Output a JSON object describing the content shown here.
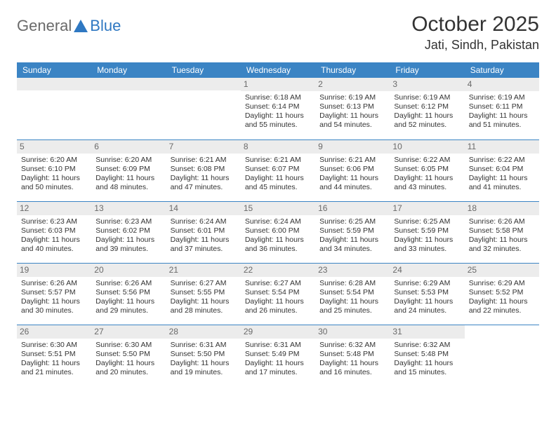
{
  "logo": {
    "general": "General",
    "blue": "Blue",
    "shape_color": "#2f78c2"
  },
  "header": {
    "month": "October 2025",
    "location": "Jati, Sindh, Pakistan"
  },
  "styling": {
    "header_bg": "#3b84c4",
    "header_text": "#ffffff",
    "rule_color": "#3b84c4",
    "daystrip_bg": "#ececec",
    "daynum_color": "#6a6a6a",
    "body_text": "#333333",
    "background": "#ffffff",
    "month_fontsize": 30,
    "location_fontsize": 18,
    "weekday_fontsize": 12,
    "cell_fontsize": 10.5
  },
  "weekdays": [
    "Sunday",
    "Monday",
    "Tuesday",
    "Wednesday",
    "Thursday",
    "Friday",
    "Saturday"
  ],
  "days": [
    {
      "n": 1,
      "sr": "6:18 AM",
      "ss": "6:14 PM",
      "dl": "11 hours and 55 minutes."
    },
    {
      "n": 2,
      "sr": "6:19 AM",
      "ss": "6:13 PM",
      "dl": "11 hours and 54 minutes."
    },
    {
      "n": 3,
      "sr": "6:19 AM",
      "ss": "6:12 PM",
      "dl": "11 hours and 52 minutes."
    },
    {
      "n": 4,
      "sr": "6:19 AM",
      "ss": "6:11 PM",
      "dl": "11 hours and 51 minutes."
    },
    {
      "n": 5,
      "sr": "6:20 AM",
      "ss": "6:10 PM",
      "dl": "11 hours and 50 minutes."
    },
    {
      "n": 6,
      "sr": "6:20 AM",
      "ss": "6:09 PM",
      "dl": "11 hours and 48 minutes."
    },
    {
      "n": 7,
      "sr": "6:21 AM",
      "ss": "6:08 PM",
      "dl": "11 hours and 47 minutes."
    },
    {
      "n": 8,
      "sr": "6:21 AM",
      "ss": "6:07 PM",
      "dl": "11 hours and 45 minutes."
    },
    {
      "n": 9,
      "sr": "6:21 AM",
      "ss": "6:06 PM",
      "dl": "11 hours and 44 minutes."
    },
    {
      "n": 10,
      "sr": "6:22 AM",
      "ss": "6:05 PM",
      "dl": "11 hours and 43 minutes."
    },
    {
      "n": 11,
      "sr": "6:22 AM",
      "ss": "6:04 PM",
      "dl": "11 hours and 41 minutes."
    },
    {
      "n": 12,
      "sr": "6:23 AM",
      "ss": "6:03 PM",
      "dl": "11 hours and 40 minutes."
    },
    {
      "n": 13,
      "sr": "6:23 AM",
      "ss": "6:02 PM",
      "dl": "11 hours and 39 minutes."
    },
    {
      "n": 14,
      "sr": "6:24 AM",
      "ss": "6:01 PM",
      "dl": "11 hours and 37 minutes."
    },
    {
      "n": 15,
      "sr": "6:24 AM",
      "ss": "6:00 PM",
      "dl": "11 hours and 36 minutes."
    },
    {
      "n": 16,
      "sr": "6:25 AM",
      "ss": "5:59 PM",
      "dl": "11 hours and 34 minutes."
    },
    {
      "n": 17,
      "sr": "6:25 AM",
      "ss": "5:59 PM",
      "dl": "11 hours and 33 minutes."
    },
    {
      "n": 18,
      "sr": "6:26 AM",
      "ss": "5:58 PM",
      "dl": "11 hours and 32 minutes."
    },
    {
      "n": 19,
      "sr": "6:26 AM",
      "ss": "5:57 PM",
      "dl": "11 hours and 30 minutes."
    },
    {
      "n": 20,
      "sr": "6:26 AM",
      "ss": "5:56 PM",
      "dl": "11 hours and 29 minutes."
    },
    {
      "n": 21,
      "sr": "6:27 AM",
      "ss": "5:55 PM",
      "dl": "11 hours and 28 minutes."
    },
    {
      "n": 22,
      "sr": "6:27 AM",
      "ss": "5:54 PM",
      "dl": "11 hours and 26 minutes."
    },
    {
      "n": 23,
      "sr": "6:28 AM",
      "ss": "5:54 PM",
      "dl": "11 hours and 25 minutes."
    },
    {
      "n": 24,
      "sr": "6:29 AM",
      "ss": "5:53 PM",
      "dl": "11 hours and 24 minutes."
    },
    {
      "n": 25,
      "sr": "6:29 AM",
      "ss": "5:52 PM",
      "dl": "11 hours and 22 minutes."
    },
    {
      "n": 26,
      "sr": "6:30 AM",
      "ss": "5:51 PM",
      "dl": "11 hours and 21 minutes."
    },
    {
      "n": 27,
      "sr": "6:30 AM",
      "ss": "5:50 PM",
      "dl": "11 hours and 20 minutes."
    },
    {
      "n": 28,
      "sr": "6:31 AM",
      "ss": "5:50 PM",
      "dl": "11 hours and 19 minutes."
    },
    {
      "n": 29,
      "sr": "6:31 AM",
      "ss": "5:49 PM",
      "dl": "11 hours and 17 minutes."
    },
    {
      "n": 30,
      "sr": "6:32 AM",
      "ss": "5:48 PM",
      "dl": "11 hours and 16 minutes."
    },
    {
      "n": 31,
      "sr": "6:32 AM",
      "ss": "5:48 PM",
      "dl": "11 hours and 15 minutes."
    }
  ],
  "labels": {
    "sunrise": "Sunrise: ",
    "sunset": "Sunset: ",
    "daylight": "Daylight: "
  },
  "grid": {
    "first_weekday_index": 3,
    "rows": 5,
    "cols": 7
  }
}
